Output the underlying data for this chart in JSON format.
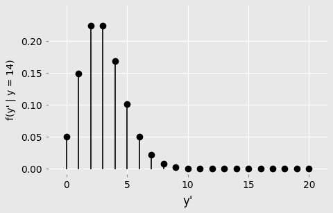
{
  "y_vals": [
    0,
    1,
    2,
    3,
    4,
    5,
    6,
    7,
    8,
    9,
    10,
    11,
    12,
    13,
    14,
    15,
    16,
    17,
    18,
    19,
    20
  ],
  "xlabel": "y'",
  "ylabel": "f(y' | y = 14)",
  "xlim": [
    -1.5,
    21.5
  ],
  "ylim": [
    -0.008,
    0.255
  ],
  "yticks": [
    0.0,
    0.05,
    0.1,
    0.15,
    0.2
  ],
  "xticks": [
    0,
    5,
    10,
    15,
    20
  ],
  "bg_color": "#E8E8E8",
  "grid_color": "#FFFFFF",
  "line_color": "#000000",
  "dot_color": "#000000",
  "dot_size": 7,
  "line_width": 1.2,
  "distribution": "negative_binomial",
  "nb_n": 14,
  "nb_p": 0.5
}
